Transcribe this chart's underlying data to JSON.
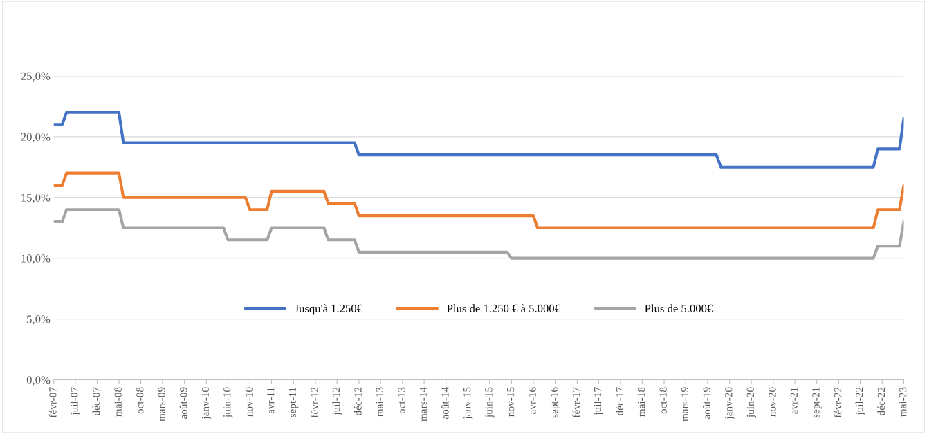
{
  "chart_data": {
    "type": "line",
    "xlim": [
      "2007-02",
      "2023-05"
    ],
    "xticks": [
      {
        "value": "2007-02",
        "label": "févr-07"
      },
      {
        "value": "2007-07",
        "label": "juil-07"
      },
      {
        "value": "2007-12",
        "label": "déc-07"
      },
      {
        "value": "2008-05",
        "label": "mai-08"
      },
      {
        "value": "2008-10",
        "label": "oct-08"
      },
      {
        "value": "2009-03",
        "label": "mars-09"
      },
      {
        "value": "2009-08",
        "label": "août-09"
      },
      {
        "value": "2010-01",
        "label": "janv-10"
      },
      {
        "value": "2010-06",
        "label": "juin-10"
      },
      {
        "value": "2010-11",
        "label": "nov-10"
      },
      {
        "value": "2011-04",
        "label": "avr-11"
      },
      {
        "value": "2011-09",
        "label": "sept-11"
      },
      {
        "value": "2012-02",
        "label": "févr-12"
      },
      {
        "value": "2012-07",
        "label": "juil-12"
      },
      {
        "value": "2012-12",
        "label": "déc-12"
      },
      {
        "value": "2013-05",
        "label": "mai-13"
      },
      {
        "value": "2013-10",
        "label": "oct-13"
      },
      {
        "value": "2014-03",
        "label": "mars-14"
      },
      {
        "value": "2014-08",
        "label": "août-14"
      },
      {
        "value": "2015-01",
        "label": "janv-15"
      },
      {
        "value": "2015-06",
        "label": "juin-15"
      },
      {
        "value": "2015-11",
        "label": "nov-15"
      },
      {
        "value": "2016-04",
        "label": "avr-16"
      },
      {
        "value": "2016-09",
        "label": "sept-16"
      },
      {
        "value": "2017-02",
        "label": "févr-17"
      },
      {
        "value": "2017-07",
        "label": "juil-17"
      },
      {
        "value": "2017-12",
        "label": "déc-17"
      },
      {
        "value": "2018-05",
        "label": "mai-18"
      },
      {
        "value": "2018-10",
        "label": "oct-18"
      },
      {
        "value": "2019-03",
        "label": "mars-19"
      },
      {
        "value": "2019-08",
        "label": "août-19"
      },
      {
        "value": "2020-01",
        "label": "janv-20"
      },
      {
        "value": "2020-06",
        "label": "juin-20"
      },
      {
        "value": "2020-11",
        "label": "nov-20"
      },
      {
        "value": "2021-04",
        "label": "avr-21"
      },
      {
        "value": "2021-09",
        "label": "sept-21"
      },
      {
        "value": "2022-02",
        "label": "févr-22"
      },
      {
        "value": "2022-07",
        "label": "juil-22"
      },
      {
        "value": "2022-12",
        "label": "déc-22"
      },
      {
        "value": "2023-05",
        "label": "mai-23"
      }
    ],
    "ylim": [
      0,
      25
    ],
    "yticks": [
      {
        "value": 0,
        "label": "0,0%"
      },
      {
        "value": 5,
        "label": "5,0%"
      },
      {
        "value": 10,
        "label": "10,0%"
      },
      {
        "value": 15,
        "label": "15,0%"
      },
      {
        "value": 20,
        "label": "20,0%"
      },
      {
        "value": 25,
        "label": "25,0%"
      }
    ],
    "grid": "y",
    "legend": "bottom",
    "series": [
      {
        "name": "Jusqu'à 1.250€",
        "color": "#4472c4",
        "x": [
          "2007-02",
          "2007-04",
          "2007-05",
          "2008-05",
          "2008-06",
          "2012-11",
          "2012-12",
          "2019-10",
          "2019-11",
          "2022-10",
          "2022-11",
          "2023-04",
          "2023-05"
        ],
        "values": [
          21,
          21,
          22,
          22,
          19.5,
          19.5,
          18.5,
          18.5,
          17.5,
          17.5,
          19,
          19,
          21.5
        ]
      },
      {
        "name": "Plus de 1.250 € à 5.000€",
        "color": "#ed7d31",
        "x": [
          "2007-02",
          "2007-04",
          "2007-05",
          "2008-05",
          "2008-06",
          "2010-10",
          "2010-11",
          "2011-03",
          "2011-04",
          "2012-04",
          "2012-05",
          "2012-11",
          "2012-12",
          "2016-04",
          "2016-05",
          "2022-10",
          "2022-11",
          "2023-04",
          "2023-05"
        ],
        "values": [
          16,
          16,
          17,
          17,
          15,
          15,
          14,
          14,
          15.5,
          15.5,
          14.5,
          14.5,
          13.5,
          13.5,
          12.5,
          12.5,
          14,
          14,
          16
        ]
      },
      {
        "name": "Plus de 5.000€",
        "color": "#a5a5a5",
        "x": [
          "2007-02",
          "2007-04",
          "2007-05",
          "2008-05",
          "2008-06",
          "2010-05",
          "2010-06",
          "2011-03",
          "2011-04",
          "2012-04",
          "2012-05",
          "2012-11",
          "2012-12",
          "2015-10",
          "2015-11",
          "2022-10",
          "2022-11",
          "2023-04",
          "2023-05"
        ],
        "values": [
          13,
          13,
          14,
          14,
          12.5,
          12.5,
          11.5,
          11.5,
          12.5,
          12.5,
          11.5,
          11.5,
          10.5,
          10.5,
          10,
          10,
          11,
          11,
          13
        ]
      }
    ]
  }
}
